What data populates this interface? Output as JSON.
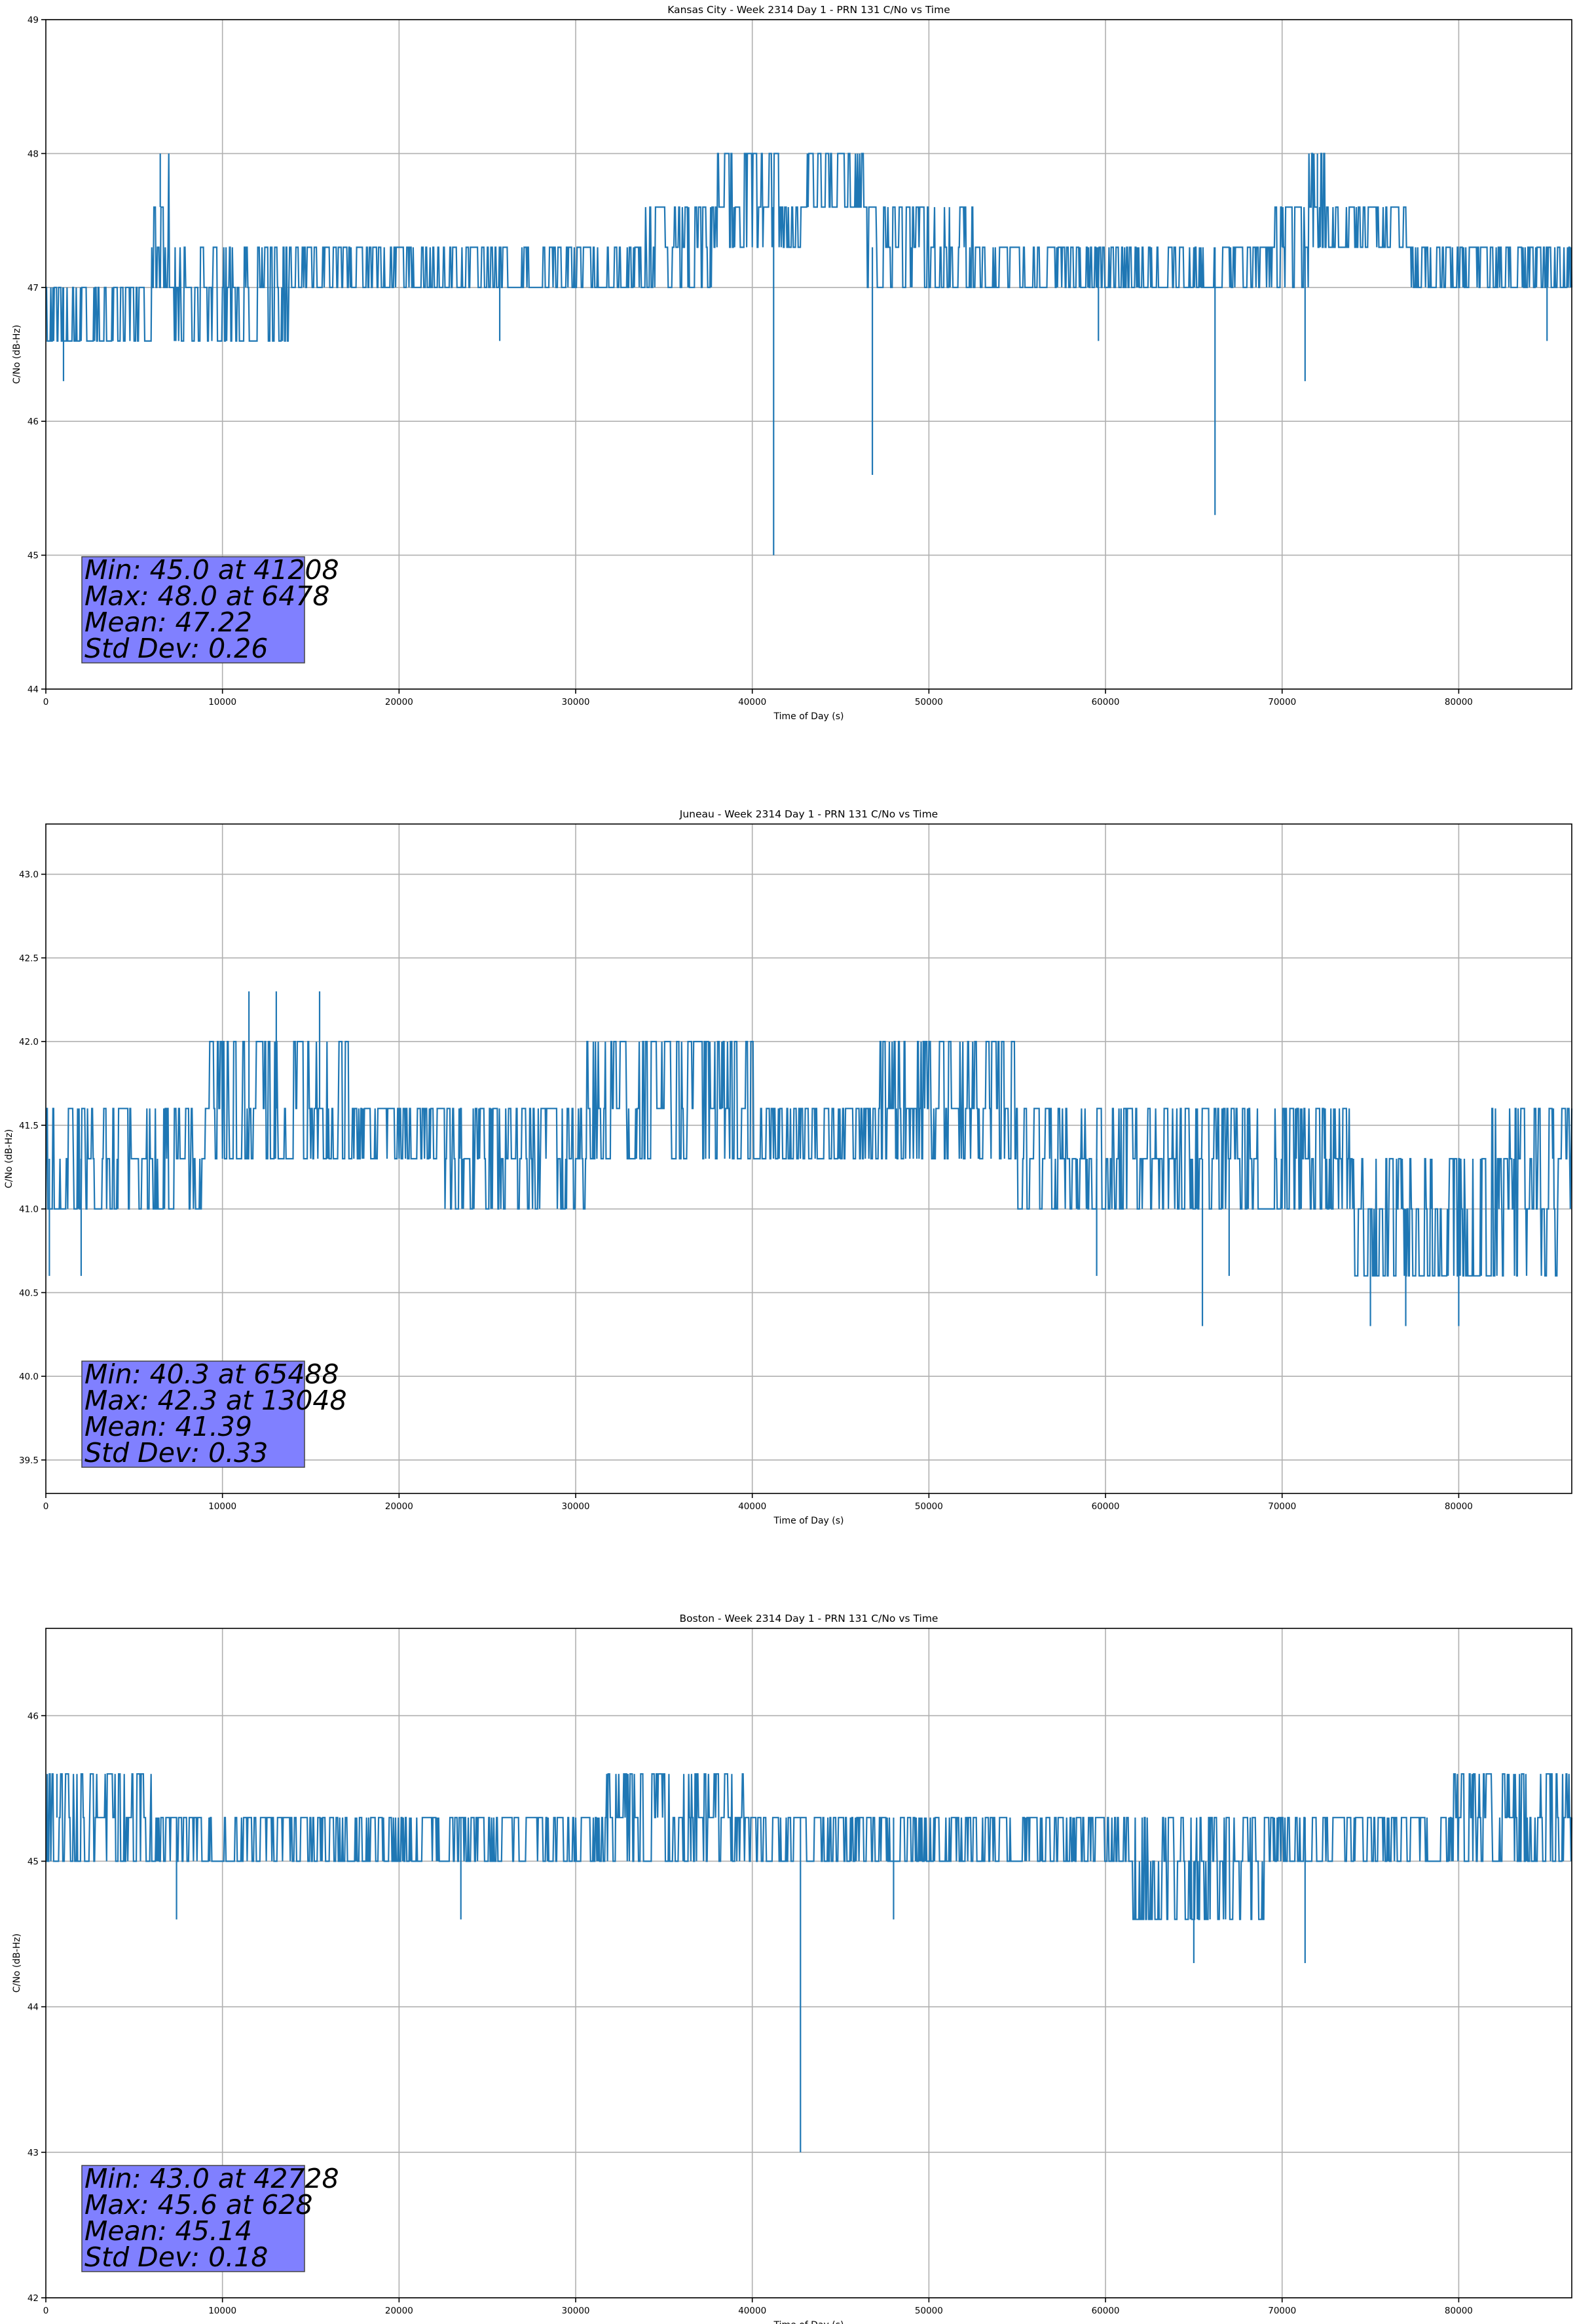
{
  "chart_data": [
    {
      "type": "line",
      "title": "Kansas City - Week 2314 Day 1 - PRN 131 C/No vs Time",
      "xlabel": "Time of Day (s)",
      "ylabel": "C/No (dB-Hz)",
      "xlim": [
        0,
        86400
      ],
      "ylim": [
        44,
        49
      ],
      "xticks": [
        0,
        10000,
        20000,
        30000,
        40000,
        50000,
        60000,
        70000,
        80000
      ],
      "xtick_labels": [
        "0",
        "10000",
        "20000",
        "30000",
        "40000",
        "50000",
        "60000",
        "70000",
        "80000"
      ],
      "yticks": [
        44,
        45,
        46,
        47,
        48,
        49
      ],
      "ytick_labels": [
        "44",
        "45",
        "46",
        "47",
        "48",
        "49"
      ],
      "grid": true,
      "series_color": "#1f77b4",
      "bands": [
        {
          "x_start": 0,
          "x_end": 6000,
          "levels": [
            46.6,
            47.0
          ]
        },
        {
          "x_start": 6000,
          "x_end": 7200,
          "levels": [
            47.0,
            47.3,
            47.6,
            48.0
          ]
        },
        {
          "x_start": 7200,
          "x_end": 14000,
          "levels": [
            46.6,
            47.0,
            47.3
          ]
        },
        {
          "x_start": 14000,
          "x_end": 33000,
          "levels": [
            47.0,
            47.3
          ]
        },
        {
          "x_start": 33000,
          "x_end": 38000,
          "levels": [
            47.0,
            47.3,
            47.6
          ]
        },
        {
          "x_start": 38000,
          "x_end": 41500,
          "levels": [
            47.3,
            47.6,
            48.0
          ]
        },
        {
          "x_start": 41500,
          "x_end": 43000,
          "levels": [
            47.3,
            47.6
          ]
        },
        {
          "x_start": 43000,
          "x_end": 46500,
          "levels": [
            47.6,
            48.0
          ]
        },
        {
          "x_start": 46500,
          "x_end": 52500,
          "levels": [
            47.0,
            47.3,
            47.6
          ]
        },
        {
          "x_start": 52500,
          "x_end": 69500,
          "levels": [
            47.0,
            47.3
          ]
        },
        {
          "x_start": 69500,
          "x_end": 71500,
          "levels": [
            47.0,
            47.3,
            47.6
          ]
        },
        {
          "x_start": 71500,
          "x_end": 73000,
          "levels": [
            47.3,
            47.6,
            48.0
          ]
        },
        {
          "x_start": 73000,
          "x_end": 77000,
          "levels": [
            47.3,
            47.6
          ]
        },
        {
          "x_start": 77000,
          "x_end": 86400,
          "levels": [
            47.0,
            47.3
          ]
        }
      ],
      "spikes": [
        {
          "x": 1000,
          "y": 46.3
        },
        {
          "x": 6478,
          "y": 48.0
        },
        {
          "x": 25700,
          "y": 46.6
        },
        {
          "x": 41208,
          "y": 45.0
        },
        {
          "x": 46800,
          "y": 45.6
        },
        {
          "x": 59600,
          "y": 46.6
        },
        {
          "x": 66200,
          "y": 45.3
        },
        {
          "x": 71300,
          "y": 46.3
        },
        {
          "x": 72000,
          "y": 48.0
        },
        {
          "x": 85000,
          "y": 46.6
        }
      ],
      "stats": [
        "Min: 45.0 at 41208",
        "Max: 48.0 at 6478",
        "Mean: 47.22",
        "Std Dev: 0.26"
      ]
    },
    {
      "type": "line",
      "title": "Juneau - Week 2314 Day 1 - PRN 131 C/No vs Time",
      "xlabel": "Time of Day (s)",
      "ylabel": "C/No (dB-Hz)",
      "xlim": [
        0,
        86400
      ],
      "ylim": [
        39.3,
        43.3
      ],
      "xticks": [
        0,
        10000,
        20000,
        30000,
        40000,
        50000,
        60000,
        70000,
        80000
      ],
      "xtick_labels": [
        "0",
        "10000",
        "20000",
        "30000",
        "40000",
        "50000",
        "60000",
        "70000",
        "80000"
      ],
      "yticks": [
        39.5,
        40.0,
        40.5,
        41.0,
        41.5,
        42.0,
        42.5,
        43.0
      ],
      "ytick_labels": [
        "39.5",
        "40.0",
        "40.5",
        "41.0",
        "41.5",
        "42.0",
        "42.5",
        "43.0"
      ],
      "grid": true,
      "series_color": "#1f77b4",
      "bands": [
        {
          "x_start": 0,
          "x_end": 9000,
          "levels": [
            41.0,
            41.3,
            41.6
          ]
        },
        {
          "x_start": 9000,
          "x_end": 17000,
          "levels": [
            41.3,
            41.6,
            42.0
          ]
        },
        {
          "x_start": 17000,
          "x_end": 22500,
          "levels": [
            41.3,
            41.6
          ]
        },
        {
          "x_start": 22500,
          "x_end": 30500,
          "levels": [
            41.0,
            41.3,
            41.6
          ]
        },
        {
          "x_start": 30500,
          "x_end": 40000,
          "levels": [
            41.3,
            41.6,
            42.0
          ]
        },
        {
          "x_start": 40000,
          "x_end": 47000,
          "levels": [
            41.3,
            41.6
          ]
        },
        {
          "x_start": 47000,
          "x_end": 55000,
          "levels": [
            41.3,
            41.6,
            42.0
          ]
        },
        {
          "x_start": 55000,
          "x_end": 62000,
          "levels": [
            41.0,
            41.3,
            41.6
          ]
        },
        {
          "x_start": 62000,
          "x_end": 74000,
          "levels": [
            41.0,
            41.3,
            41.6
          ]
        },
        {
          "x_start": 74000,
          "x_end": 81000,
          "levels": [
            40.6,
            41.0,
            41.3
          ]
        },
        {
          "x_start": 81000,
          "x_end": 86400,
          "levels": [
            40.6,
            41.0,
            41.3,
            41.6
          ]
        }
      ],
      "spikes": [
        {
          "x": 13048,
          "y": 42.3
        },
        {
          "x": 11500,
          "y": 42.3
        },
        {
          "x": 15500,
          "y": 42.3
        },
        {
          "x": 2000,
          "y": 40.6
        },
        {
          "x": 200,
          "y": 40.6
        },
        {
          "x": 59500,
          "y": 40.6
        },
        {
          "x": 65488,
          "y": 40.3
        },
        {
          "x": 67000,
          "y": 40.6
        },
        {
          "x": 75000,
          "y": 40.3
        },
        {
          "x": 77000,
          "y": 40.3
        },
        {
          "x": 80000,
          "y": 40.3
        }
      ],
      "stats": [
        "Min: 40.3 at 65488",
        "Max: 42.3 at 13048",
        "Mean: 41.39",
        "Std Dev: 0.33"
      ]
    },
    {
      "type": "line",
      "title": "Boston - Week 2314 Day 1 - PRN 131 C/No vs Time",
      "xlabel": "Time of Day (s)",
      "ylabel": "C/No (dB-Hz)",
      "xlim": [
        0,
        86400
      ],
      "ylim": [
        42,
        46.6
      ],
      "xticks": [
        0,
        10000,
        20000,
        30000,
        40000,
        50000,
        60000,
        70000,
        80000
      ],
      "xtick_labels": [
        "0",
        "10000",
        "20000",
        "30000",
        "40000",
        "50000",
        "60000",
        "70000",
        "80000"
      ],
      "yticks": [
        42,
        43,
        44,
        45,
        46
      ],
      "ytick_labels": [
        "42",
        "43",
        "44",
        "45",
        "46"
      ],
      "grid": true,
      "series_color": "#1f77b4",
      "bands": [
        {
          "x_start": 0,
          "x_end": 6000,
          "levels": [
            45.0,
            45.3,
            45.6
          ]
        },
        {
          "x_start": 6000,
          "x_end": 31500,
          "levels": [
            45.0,
            45.3
          ]
        },
        {
          "x_start": 31500,
          "x_end": 40000,
          "levels": [
            45.0,
            45.3,
            45.6
          ]
        },
        {
          "x_start": 40000,
          "x_end": 61500,
          "levels": [
            45.0,
            45.3
          ]
        },
        {
          "x_start": 61500,
          "x_end": 69000,
          "levels": [
            44.6,
            45.0,
            45.3
          ]
        },
        {
          "x_start": 69000,
          "x_end": 79000,
          "levels": [
            45.0,
            45.3
          ]
        },
        {
          "x_start": 79000,
          "x_end": 86400,
          "levels": [
            45.0,
            45.3,
            45.6
          ]
        }
      ],
      "spikes": [
        {
          "x": 628,
          "y": 45.6
        },
        {
          "x": 7400,
          "y": 44.6
        },
        {
          "x": 42728,
          "y": 43.0
        },
        {
          "x": 65000,
          "y": 44.3
        },
        {
          "x": 71300,
          "y": 44.3
        },
        {
          "x": 23500,
          "y": 44.6
        },
        {
          "x": 48000,
          "y": 44.6
        }
      ],
      "stats": [
        "Min: 43.0 at 42728",
        "Max: 45.6 at 628",
        "Mean: 45.14",
        "Std Dev: 0.18"
      ]
    }
  ]
}
